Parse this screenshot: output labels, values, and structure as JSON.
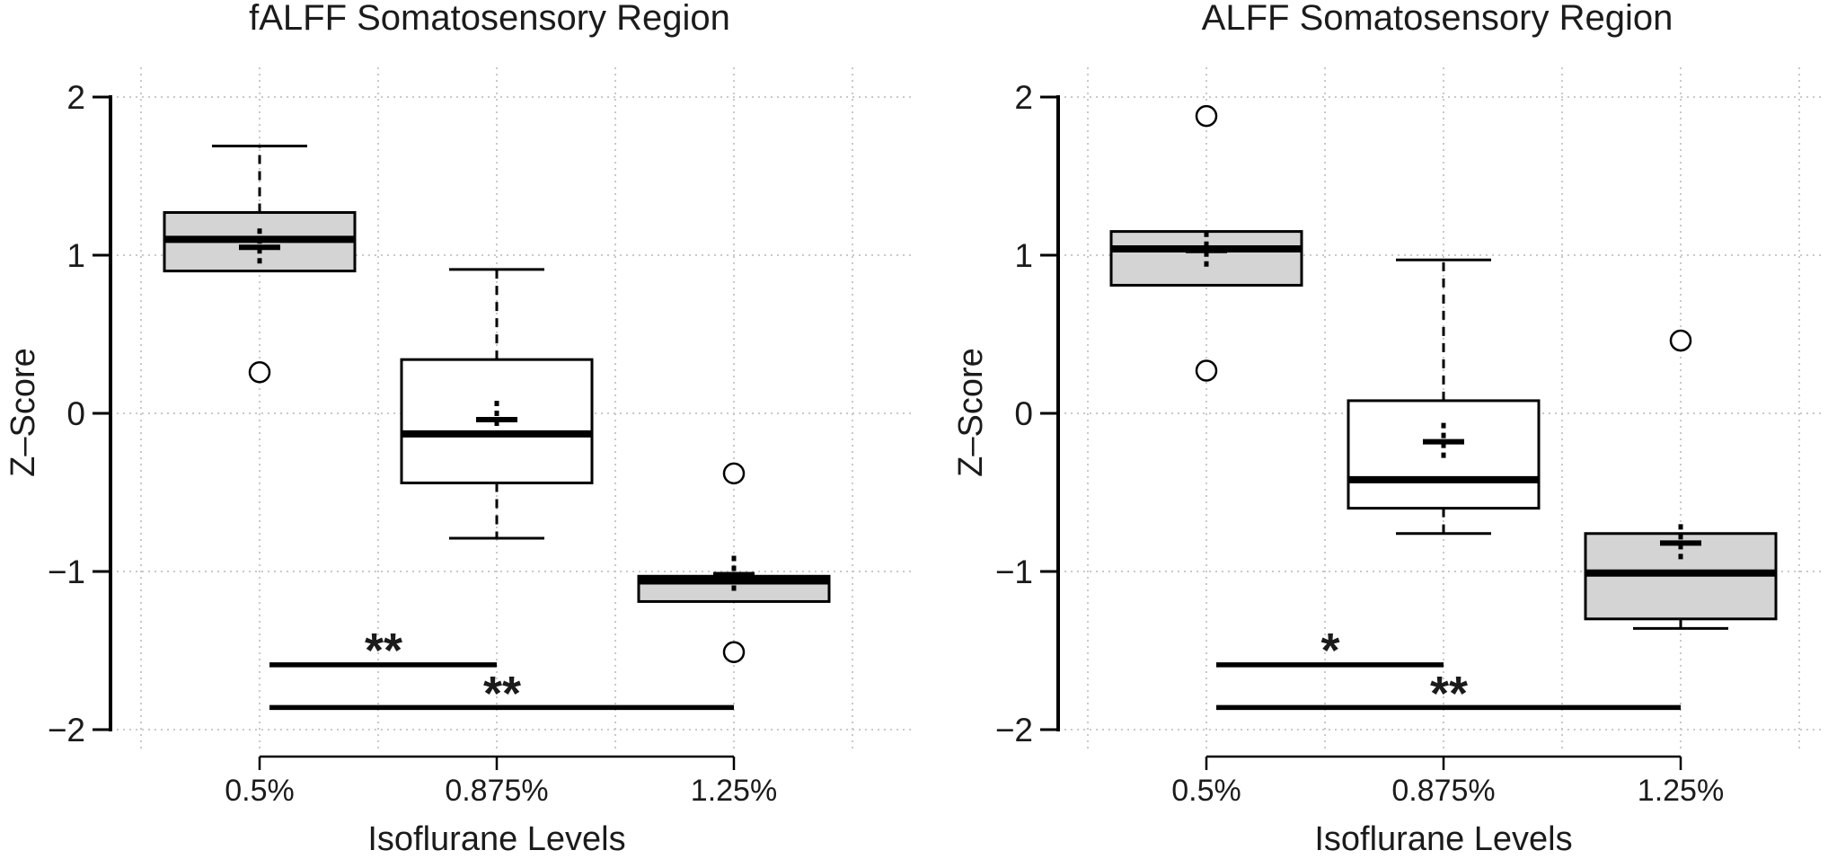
{
  "figure": {
    "background": "#ffffff",
    "text_color": "#1b1b1b",
    "colors": {
      "box_gray": "#d4d4d4",
      "box_white": "#ffffff",
      "grid": "#c9c9c9",
      "line": "#000000"
    },
    "y_axis": {
      "label": "Z–Score",
      "ticks": [
        2,
        1,
        0,
        -1,
        -2
      ],
      "tick_labels": [
        "2",
        "1",
        "0",
        "−1",
        "−2"
      ],
      "range": [
        -2.2,
        2.2
      ]
    },
    "x_axis": {
      "label": "Isoflurane Levels",
      "categories": [
        "0.5%",
        "0.875%",
        "1.25%"
      ]
    }
  },
  "chart_data": [
    {
      "type": "boxplot",
      "title": "fALFF Somatosensory Region",
      "xlabel": "Isoflurane Levels",
      "ylabel": "Z–Score",
      "categories": [
        "0.5%",
        "0.875%",
        "1.25%"
      ],
      "ylim": [
        -2.2,
        2.2
      ],
      "yticks": [
        2,
        1,
        0,
        -1,
        -2
      ],
      "grid": "dotted",
      "boxes": [
        {
          "category": "0.5%",
          "fill": "gray",
          "q1": 0.9,
          "median": 1.1,
          "q3": 1.27,
          "mean": 1.05,
          "whisker_high": 1.69,
          "whisker_low": null,
          "outliers": [
            0.26
          ]
        },
        {
          "category": "0.875%",
          "fill": "white",
          "q1": -0.44,
          "median": -0.13,
          "q3": 0.34,
          "mean": -0.04,
          "whisker_high": 0.91,
          "whisker_low": -0.79,
          "outliers": []
        },
        {
          "category": "1.25%",
          "fill": "gray",
          "q1": -1.19,
          "median": -1.06,
          "q3": -1.03,
          "mean": -1.02,
          "whisker_high": null,
          "whisker_low": null,
          "outliers": [
            -0.38,
            -1.51
          ]
        }
      ],
      "significance": [
        {
          "from": "0.5%",
          "to": "0.875%",
          "label": "**",
          "y": -1.59
        },
        {
          "from": "0.5%",
          "to": "1.25%",
          "label": "**",
          "y": -1.86
        }
      ]
    },
    {
      "type": "boxplot",
      "title": "ALFF Somatosensory Region",
      "xlabel": "Isoflurane Levels",
      "ylabel": "Z–Score",
      "categories": [
        "0.5%",
        "0.875%",
        "1.25%"
      ],
      "ylim": [
        -2.2,
        2.2
      ],
      "yticks": [
        2,
        1,
        0,
        -1,
        -2
      ],
      "grid": "dotted",
      "boxes": [
        {
          "category": "0.5%",
          "fill": "gray",
          "q1": 0.81,
          "median": 1.04,
          "q3": 1.15,
          "mean": 1.03,
          "whisker_high": null,
          "whisker_low": null,
          "outliers": [
            1.88,
            0.27
          ]
        },
        {
          "category": "0.875%",
          "fill": "white",
          "q1": -0.6,
          "median": -0.42,
          "q3": 0.08,
          "mean": -0.18,
          "whisker_high": 0.97,
          "whisker_low": -0.76,
          "outliers": []
        },
        {
          "category": "1.25%",
          "fill": "gray",
          "q1": -1.3,
          "median": -1.01,
          "q3": -0.76,
          "mean": -0.82,
          "whisker_high": null,
          "whisker_low": -1.36,
          "outliers": [
            0.46
          ]
        }
      ],
      "significance": [
        {
          "from": "0.5%",
          "to": "0.875%",
          "label": "*",
          "y": -1.59
        },
        {
          "from": "0.5%",
          "to": "1.25%",
          "label": "**",
          "y": -1.86
        }
      ]
    }
  ]
}
